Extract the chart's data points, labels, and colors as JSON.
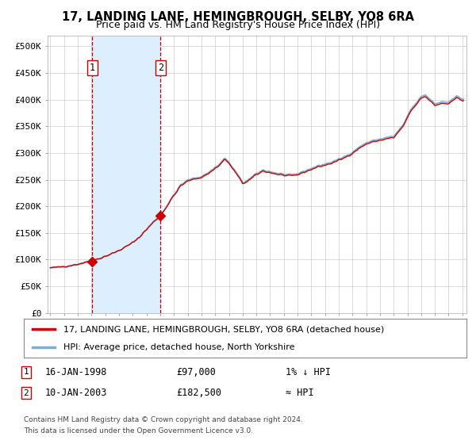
{
  "title": "17, LANDING LANE, HEMINGBROUGH, SELBY, YO8 6RA",
  "subtitle": "Price paid vs. HM Land Registry's House Price Index (HPI)",
  "legend_line1": "17, LANDING LANE, HEMINGBROUGH, SELBY, YO8 6RA (detached house)",
  "legend_line2": "HPI: Average price, detached house, North Yorkshire",
  "sale1_date_label": "16-JAN-1998",
  "sale1_price_label": "£97,000",
  "sale1_rel": "1% ↓ HPI",
  "sale2_date_label": "10-JAN-2003",
  "sale2_price_label": "£182,500",
  "sale2_rel": "≈ HPI",
  "footnote_line1": "Contains HM Land Registry data © Crown copyright and database right 2024.",
  "footnote_line2": "This data is licensed under the Open Government Licence v3.0.",
  "line_color_red": "#cc0000",
  "line_color_blue": "#7aafd4",
  "marker_color": "#cc0000",
  "shade_color": "#ddeeff",
  "dashed_color": "#cc0000",
  "bg_color": "#ffffff",
  "grid_color": "#cccccc",
  "ylim": [
    0,
    520000
  ],
  "yticks": [
    0,
    50000,
    100000,
    150000,
    200000,
    250000,
    300000,
    350000,
    400000,
    450000,
    500000
  ],
  "sale1_year": 1998.04,
  "sale1_price": 97000,
  "sale2_year": 2003.027,
  "sale2_price": 182500,
  "hpi_anchors_t": [
    1995.0,
    1995.5,
    1996.0,
    1996.5,
    1997.0,
    1997.5,
    1998.0,
    1998.5,
    1999.0,
    1999.5,
    2000.0,
    2000.5,
    2001.0,
    2001.5,
    2002.0,
    2002.5,
    2003.0,
    2003.5,
    2004.0,
    2004.5,
    2005.0,
    2005.5,
    2006.0,
    2006.5,
    2007.0,
    2007.4,
    2007.7,
    2008.0,
    2008.3,
    2008.7,
    2009.0,
    2009.5,
    2010.0,
    2010.5,
    2011.0,
    2011.5,
    2012.0,
    2012.5,
    2013.0,
    2013.5,
    2014.0,
    2014.5,
    2015.0,
    2015.5,
    2016.0,
    2016.5,
    2017.0,
    2017.5,
    2018.0,
    2018.5,
    2019.0,
    2019.5,
    2020.0,
    2020.3,
    2020.7,
    2021.0,
    2021.3,
    2021.7,
    2022.0,
    2022.3,
    2022.7,
    2023.0,
    2023.5,
    2024.0,
    2024.3,
    2024.6,
    2025.0
  ],
  "hpi_anchors_p": [
    84000,
    85000,
    87000,
    88500,
    91000,
    94000,
    97000,
    101000,
    106000,
    111000,
    117000,
    124000,
    132000,
    143000,
    157000,
    171000,
    183000,
    202000,
    222000,
    240000,
    249000,
    253000,
    256000,
    263000,
    273000,
    281000,
    291000,
    282000,
    272000,
    257000,
    244000,
    251000,
    261000,
    268000,
    265000,
    262000,
    260000,
    258000,
    261000,
    266000,
    271000,
    276000,
    279000,
    283000,
    288000,
    294000,
    302000,
    311000,
    319000,
    323000,
    326000,
    329000,
    331000,
    340000,
    353000,
    368000,
    383000,
    395000,
    406000,
    408000,
    400000,
    392000,
    396000,
    396000,
    400000,
    408000,
    400000
  ]
}
